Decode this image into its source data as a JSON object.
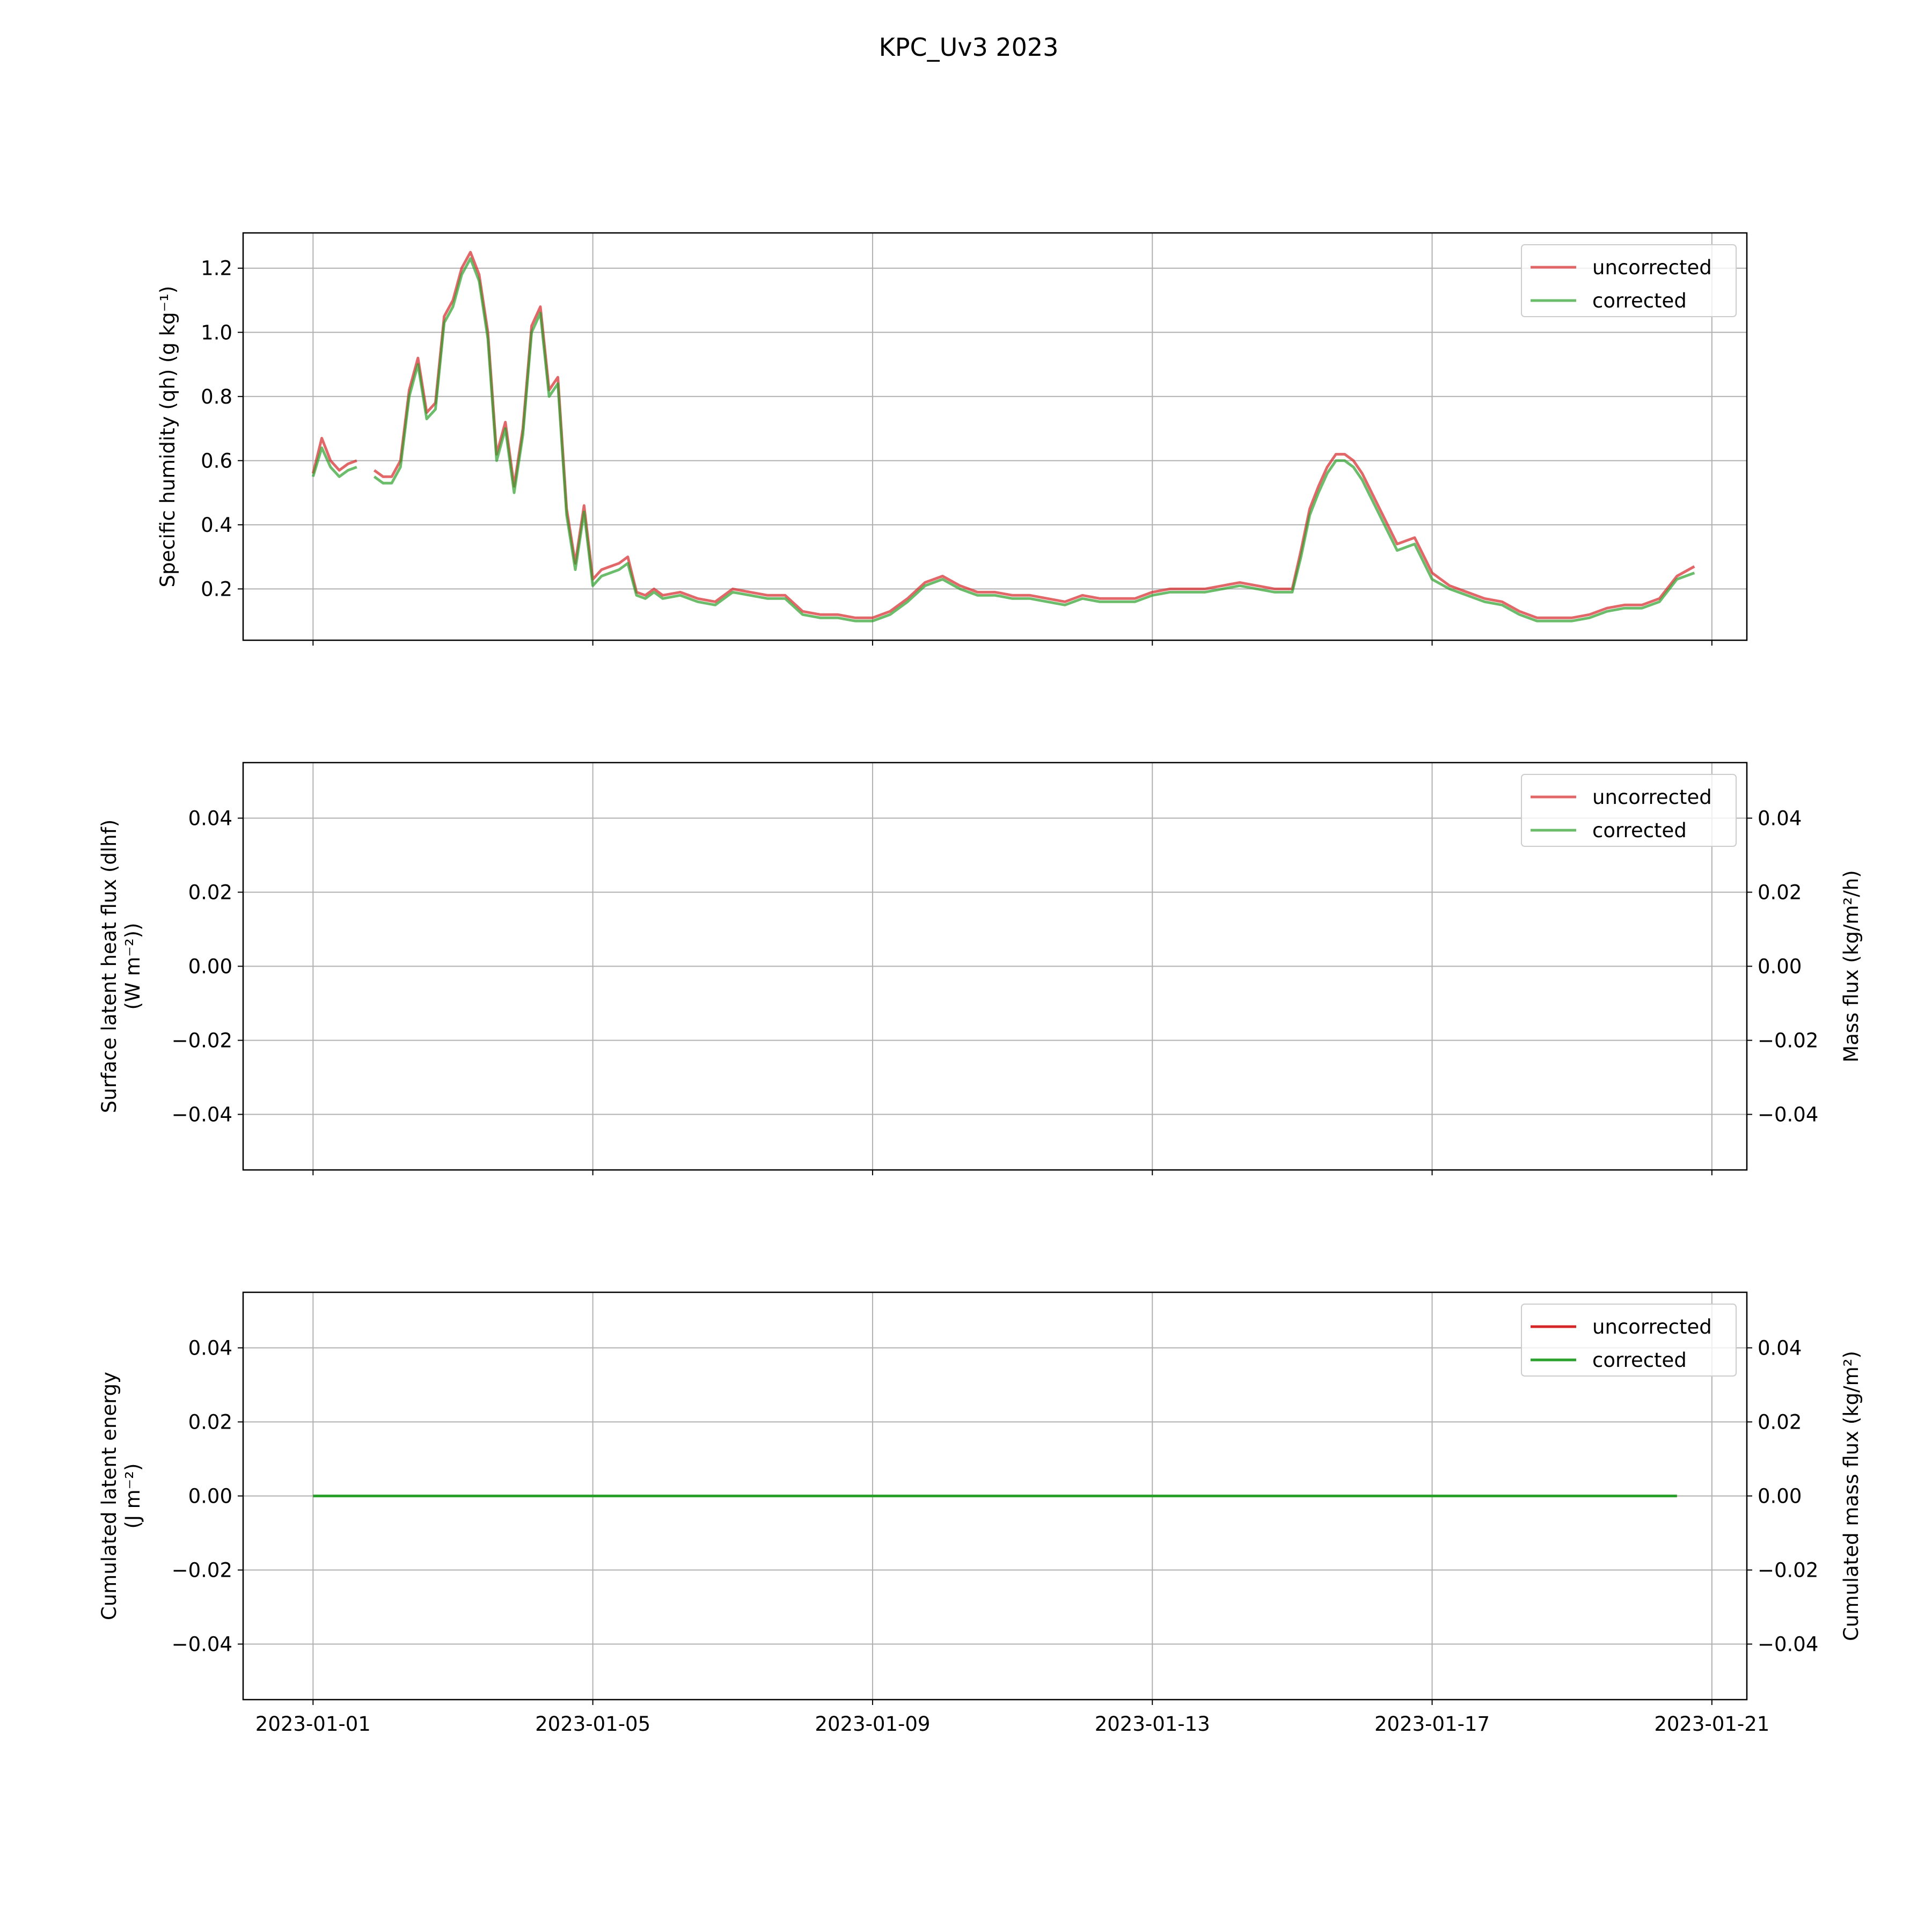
{
  "figure_title": "KPC_Uv3 2023",
  "colors": {
    "uncorrected": "#d62728",
    "corrected": "#2ca02c",
    "grid": "#b0b0b0"
  },
  "x_ticks": [
    "2023-01-01",
    "2023-01-05",
    "2023-01-09",
    "2023-01-13",
    "2023-01-17",
    "2023-01-21"
  ],
  "panels": [
    {
      "ylabel": [
        "Specific humidity (qh) (g kg⁻¹)"
      ],
      "right_ylabel": "",
      "ytick_labels": [
        "0.2",
        "0.4",
        "0.6",
        "0.8",
        "1.0",
        "1.2"
      ],
      "legend": [
        "uncorrected",
        "corrected"
      ]
    },
    {
      "ylabel": [
        "Surface latent heat flux (dlhf)",
        "(W m⁻²))"
      ],
      "right_ylabel": "Mass flux (kg/m²/h)",
      "ytick_labels": [
        "−0.04",
        "−0.02",
        "0.00",
        "0.02",
        "0.04"
      ],
      "right_ytick_labels": [
        "−0.04",
        "−0.02",
        "0.00",
        "0.02",
        "0.04"
      ],
      "legend": [
        "uncorrected",
        "corrected"
      ]
    },
    {
      "ylabel": [
        "Cumulated latent energy",
        "(J m⁻²)"
      ],
      "right_ylabel": "Cumulated mass flux (kg/m²)",
      "ytick_labels": [
        "−0.04",
        "−0.02",
        "0.00",
        "0.02",
        "0.04"
      ],
      "right_ytick_labels": [
        "−0.04",
        "−0.02",
        "0.00",
        "0.02",
        "0.04"
      ],
      "legend": [
        "uncorrected",
        "corrected"
      ]
    }
  ],
  "chart_data": [
    {
      "type": "line",
      "title": "KPC_Uv3 2023",
      "xlabel": "",
      "ylabel": "Specific humidity (qh) (g kg⁻¹)",
      "xlim": [
        "2022-12-31T00:00",
        "2023-01-21T12:00"
      ],
      "ylim": [
        0.04,
        1.31
      ],
      "yticks": [
        0.2,
        0.4,
        0.6,
        0.8,
        1.0,
        1.2
      ],
      "grid": true,
      "legend_position": "top-right",
      "x": [
        "2023-01-01T00:00",
        "2023-01-01T03:00",
        "2023-01-01T06:00",
        "2023-01-01T09:00",
        "2023-01-01T12:00",
        "2023-01-01T15:00",
        "2023-01-01T18:00",
        "2023-01-01T21:00",
        "2023-01-02T00:00",
        "2023-01-02T03:00",
        "2023-01-02T06:00",
        "2023-01-02T09:00",
        "2023-01-02T12:00",
        "2023-01-02T15:00",
        "2023-01-02T18:00",
        "2023-01-02T21:00",
        "2023-01-03T00:00",
        "2023-01-03T03:00",
        "2023-01-03T06:00",
        "2023-01-03T09:00",
        "2023-01-03T12:00",
        "2023-01-03T15:00",
        "2023-01-03T18:00",
        "2023-01-03T21:00",
        "2023-01-04T00:00",
        "2023-01-04T03:00",
        "2023-01-04T06:00",
        "2023-01-04T09:00",
        "2023-01-04T12:00",
        "2023-01-04T15:00",
        "2023-01-04T18:00",
        "2023-01-04T21:00",
        "2023-01-05T00:00",
        "2023-01-05T03:00",
        "2023-01-05T06:00",
        "2023-01-05T09:00",
        "2023-01-05T12:00",
        "2023-01-05T15:00",
        "2023-01-05T18:00",
        "2023-01-05T21:00",
        "2023-01-06T00:00",
        "2023-01-06T06:00",
        "2023-01-06T12:00",
        "2023-01-06T18:00",
        "2023-01-07T00:00",
        "2023-01-07T06:00",
        "2023-01-07T12:00",
        "2023-01-07T18:00",
        "2023-01-08T00:00",
        "2023-01-08T06:00",
        "2023-01-08T12:00",
        "2023-01-08T18:00",
        "2023-01-09T00:00",
        "2023-01-09T06:00",
        "2023-01-09T12:00",
        "2023-01-09T18:00",
        "2023-01-10T00:00",
        "2023-01-10T06:00",
        "2023-01-10T12:00",
        "2023-01-10T18:00",
        "2023-01-11T00:00",
        "2023-01-11T06:00",
        "2023-01-11T12:00",
        "2023-01-11T18:00",
        "2023-01-12T00:00",
        "2023-01-12T06:00",
        "2023-01-12T12:00",
        "2023-01-12T18:00",
        "2023-01-13T00:00",
        "2023-01-13T06:00",
        "2023-01-13T12:00",
        "2023-01-13T18:00",
        "2023-01-14T00:00",
        "2023-01-14T06:00",
        "2023-01-14T12:00",
        "2023-01-14T18:00",
        "2023-01-15T00:00",
        "2023-01-15T03:00",
        "2023-01-15T06:00",
        "2023-01-15T09:00",
        "2023-01-15T12:00",
        "2023-01-15T15:00",
        "2023-01-15T18:00",
        "2023-01-15T21:00",
        "2023-01-16T00:00",
        "2023-01-16T06:00",
        "2023-01-16T12:00",
        "2023-01-16T18:00",
        "2023-01-17T00:00",
        "2023-01-17T06:00",
        "2023-01-17T12:00",
        "2023-01-17T18:00",
        "2023-01-18T00:00",
        "2023-01-18T06:00",
        "2023-01-18T12:00",
        "2023-01-18T18:00",
        "2023-01-19T00:00",
        "2023-01-19T06:00",
        "2023-01-19T12:00",
        "2023-01-19T18:00",
        "2023-01-20T00:00",
        "2023-01-20T06:00",
        "2023-01-20T12:00",
        "2023-01-20T18:00"
      ],
      "series": [
        {
          "name": "uncorrected",
          "color": "#d62728",
          "values": [
            0.56,
            0.67,
            0.6,
            0.57,
            0.59,
            0.6,
            null,
            0.57,
            0.55,
            0.55,
            0.6,
            0.82,
            0.92,
            0.75,
            0.78,
            1.05,
            1.1,
            1.2,
            1.25,
            1.18,
            1.0,
            0.62,
            0.72,
            0.52,
            0.7,
            1.02,
            1.08,
            0.82,
            0.86,
            0.45,
            0.28,
            0.46,
            0.23,
            0.26,
            0.27,
            0.28,
            0.3,
            0.19,
            0.18,
            0.2,
            0.18,
            0.19,
            0.17,
            0.16,
            0.2,
            0.19,
            0.18,
            0.18,
            0.13,
            0.12,
            0.12,
            0.11,
            0.11,
            0.13,
            0.17,
            0.22,
            0.24,
            0.21,
            0.19,
            0.19,
            0.18,
            0.18,
            0.17,
            0.16,
            0.18,
            0.17,
            0.17,
            0.17,
            0.19,
            0.2,
            0.2,
            0.2,
            0.21,
            0.22,
            0.21,
            0.2,
            0.2,
            0.32,
            0.45,
            0.52,
            0.58,
            0.62,
            0.62,
            0.6,
            0.56,
            0.45,
            0.34,
            0.36,
            0.25,
            0.21,
            0.19,
            0.17,
            0.16,
            0.13,
            0.11,
            0.11,
            0.11,
            0.12,
            0.14,
            0.15,
            0.15,
            0.17,
            0.24,
            0.27
          ]
        },
        {
          "name": "corrected",
          "color": "#2ca02c",
          "values": [
            0.55,
            0.64,
            0.58,
            0.55,
            0.57,
            0.58,
            null,
            0.55,
            0.53,
            0.53,
            0.58,
            0.8,
            0.9,
            0.73,
            0.76,
            1.03,
            1.08,
            1.18,
            1.23,
            1.16,
            0.98,
            0.6,
            0.7,
            0.5,
            0.68,
            1.0,
            1.06,
            0.8,
            0.84,
            0.43,
            0.26,
            0.44,
            0.21,
            0.24,
            0.25,
            0.26,
            0.28,
            0.18,
            0.17,
            0.19,
            0.17,
            0.18,
            0.16,
            0.15,
            0.19,
            0.18,
            0.17,
            0.17,
            0.12,
            0.11,
            0.11,
            0.1,
            0.1,
            0.12,
            0.16,
            0.21,
            0.23,
            0.2,
            0.18,
            0.18,
            0.17,
            0.17,
            0.16,
            0.15,
            0.17,
            0.16,
            0.16,
            0.16,
            0.18,
            0.19,
            0.19,
            0.19,
            0.2,
            0.21,
            0.2,
            0.19,
            0.19,
            0.3,
            0.43,
            0.5,
            0.56,
            0.6,
            0.6,
            0.58,
            0.54,
            0.43,
            0.32,
            0.34,
            0.23,
            0.2,
            0.18,
            0.16,
            0.15,
            0.12,
            0.1,
            0.1,
            0.1,
            0.11,
            0.13,
            0.14,
            0.14,
            0.16,
            0.23,
            0.25
          ]
        }
      ]
    },
    {
      "type": "line",
      "xlabel": "",
      "ylabel": "Surface latent heat flux (dlhf) (W m⁻²))",
      "right_ylabel": "Mass flux (kg/m²/h)",
      "xlim": [
        "2022-12-31T00:00",
        "2023-01-21T12:00"
      ],
      "ylim": [
        -0.055,
        0.055
      ],
      "yticks": [
        -0.04,
        -0.02,
        0.0,
        0.02,
        0.04
      ],
      "grid": true,
      "legend_position": "top-right",
      "series": [
        {
          "name": "uncorrected",
          "color": "#d62728",
          "values": []
        },
        {
          "name": "corrected",
          "color": "#2ca02c",
          "values": []
        }
      ]
    },
    {
      "type": "line",
      "xlabel": "",
      "ylabel": "Cumulated latent energy (J m⁻²)",
      "right_ylabel": "Cumulated mass flux (kg/m²)",
      "xlim": [
        "2022-12-31T00:00",
        "2023-01-21T12:00"
      ],
      "ylim": [
        -0.055,
        0.055
      ],
      "yticks": [
        -0.04,
        -0.02,
        0.0,
        0.02,
        0.04
      ],
      "grid": true,
      "legend_position": "top-right",
      "x": [
        "2023-01-01T00:00",
        "2023-01-20T12:00"
      ],
      "series": [
        {
          "name": "uncorrected",
          "color": "#d62728",
          "values": [
            0.0,
            0.0
          ]
        },
        {
          "name": "corrected",
          "color": "#2ca02c",
          "values": [
            0.0,
            0.0
          ]
        }
      ]
    }
  ]
}
